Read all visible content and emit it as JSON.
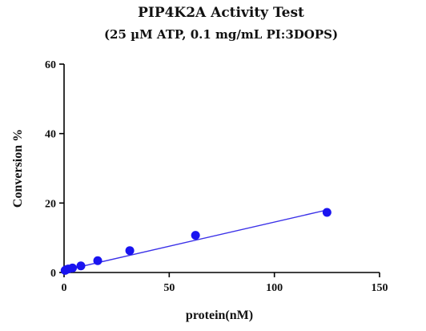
{
  "chart_data": {
    "type": "scatter",
    "title": "PIP4K2A Activity Test",
    "subtitle": "(25 µM ATP, 0.1 mg/mL PI:3DOPS)",
    "xlabel": "protein(nM)",
    "ylabel": "Conversion %",
    "xlim": [
      0,
      150
    ],
    "ylim": [
      0,
      60
    ],
    "x_ticks": [
      0,
      50,
      100,
      150
    ],
    "y_ticks": [
      0,
      20,
      40,
      60
    ],
    "grid": false,
    "points": [
      {
        "x": 0.5,
        "y": 0.6
      },
      {
        "x": 1,
        "y": 0.8
      },
      {
        "x": 2,
        "y": 1.0
      },
      {
        "x": 4,
        "y": 1.3
      },
      {
        "x": 8,
        "y": 1.9
      },
      {
        "x": 16,
        "y": 3.4
      },
      {
        "x": 31.25,
        "y": 6.3
      },
      {
        "x": 62.5,
        "y": 10.7
      },
      {
        "x": 125,
        "y": 17.3
      }
    ],
    "fit_line": {
      "x1": 0,
      "y1": 0.6,
      "x2": 125,
      "y2": 18.0
    },
    "point_color": "#1a14f0",
    "line_color": "#3a30e8"
  }
}
